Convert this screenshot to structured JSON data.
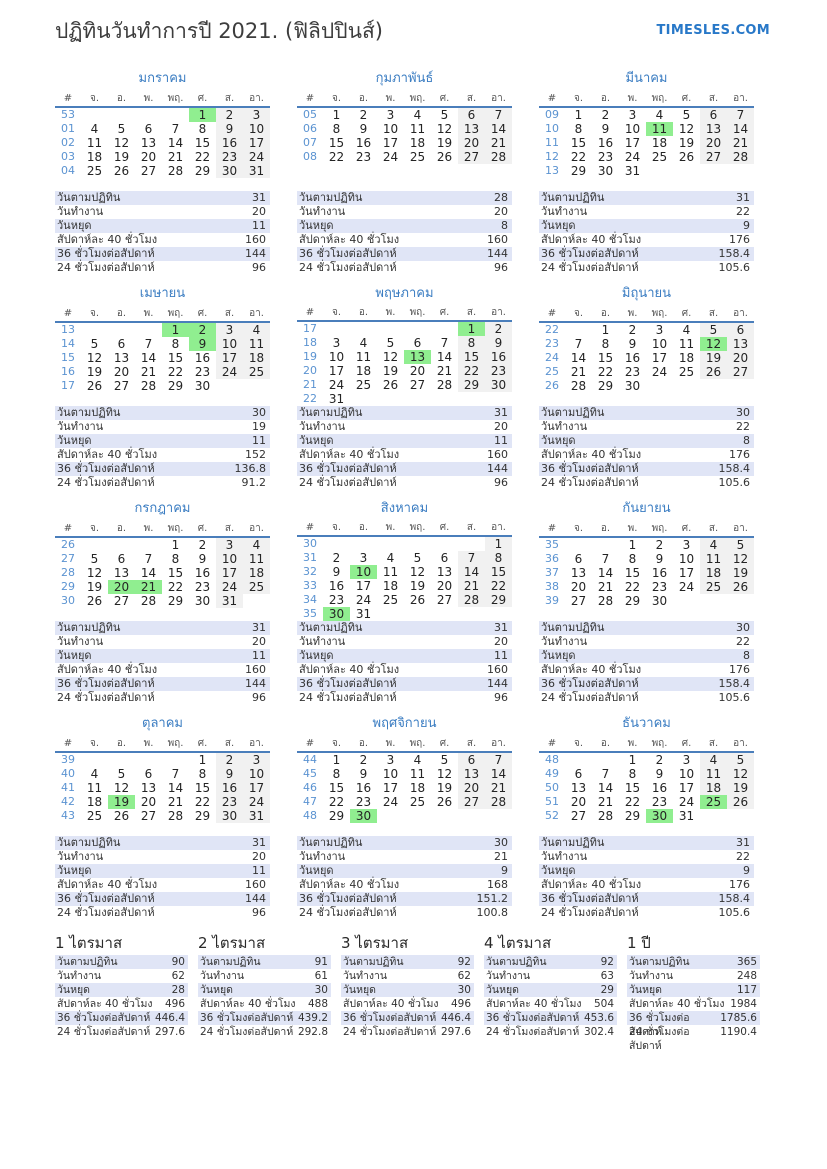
{
  "page": {
    "title": "ปฏิทินวันทำการปี 2021. (ฟิลิปปินส์)",
    "site": "TIMESLES.COM"
  },
  "colors": {
    "accent": "#2878c8",
    "month_title": "#3b7dc2",
    "week_number": "#5b93d1",
    "rule": "#4a7ebb",
    "holiday": "#90ee90",
    "weekend": "#f1f1f1",
    "row_alt": "#e0e5f6"
  },
  "day_headers": [
    "#",
    "จ.",
    "อ.",
    "พ.",
    "พฤ.",
    "ศ.",
    "ส.",
    "อา."
  ],
  "stat_labels": [
    "วันตามปฏิทิน",
    "วันทำงาน",
    "วันหยุด",
    "สัปดาห์ละ 40 ชั่วโมง",
    "36 ชั่วโมงต่อสัปดาห์",
    "24 ชั่วโมงต่อสัปดาห์"
  ],
  "months": [
    {
      "name": "มกราคม",
      "holidays": [
        1
      ],
      "stats": [
        "31",
        "20",
        "11",
        "160",
        "144",
        "96"
      ],
      "weeks": [
        {
          "num": "53",
          "days": [
            "",
            "",
            "",
            "",
            "1",
            "2",
            "3"
          ]
        },
        {
          "num": "01",
          "days": [
            "4",
            "5",
            "6",
            "7",
            "8",
            "9",
            "10"
          ]
        },
        {
          "num": "02",
          "days": [
            "11",
            "12",
            "13",
            "14",
            "15",
            "16",
            "17"
          ]
        },
        {
          "num": "03",
          "days": [
            "18",
            "19",
            "20",
            "21",
            "22",
            "23",
            "24"
          ]
        },
        {
          "num": "04",
          "days": [
            "25",
            "26",
            "27",
            "28",
            "29",
            "30",
            "31"
          ]
        }
      ]
    },
    {
      "name": "กุมภาพันธ์",
      "holidays": [],
      "stats": [
        "28",
        "20",
        "8",
        "160",
        "144",
        "96"
      ],
      "weeks": [
        {
          "num": "05",
          "days": [
            "1",
            "2",
            "3",
            "4",
            "5",
            "6",
            "7"
          ]
        },
        {
          "num": "06",
          "days": [
            "8",
            "9",
            "10",
            "11",
            "12",
            "13",
            "14"
          ]
        },
        {
          "num": "07",
          "days": [
            "15",
            "16",
            "17",
            "18",
            "19",
            "20",
            "21"
          ]
        },
        {
          "num": "08",
          "days": [
            "22",
            "23",
            "24",
            "25",
            "26",
            "27",
            "28"
          ]
        }
      ]
    },
    {
      "name": "มีนาคม",
      "holidays": [
        11
      ],
      "stats": [
        "31",
        "22",
        "9",
        "176",
        "158.4",
        "105.6"
      ],
      "weeks": [
        {
          "num": "09",
          "days": [
            "1",
            "2",
            "3",
            "4",
            "5",
            "6",
            "7"
          ]
        },
        {
          "num": "10",
          "days": [
            "8",
            "9",
            "10",
            "11",
            "12",
            "13",
            "14"
          ]
        },
        {
          "num": "11",
          "days": [
            "15",
            "16",
            "17",
            "18",
            "19",
            "20",
            "21"
          ]
        },
        {
          "num": "12",
          "days": [
            "22",
            "23",
            "24",
            "25",
            "26",
            "27",
            "28"
          ]
        },
        {
          "num": "13",
          "days": [
            "29",
            "30",
            "31",
            "",
            "",
            "",
            ""
          ]
        }
      ]
    },
    {
      "name": "เมษายน",
      "holidays": [
        1,
        2,
        9
      ],
      "stats": [
        "30",
        "19",
        "11",
        "152",
        "136.8",
        "91.2"
      ],
      "weeks": [
        {
          "num": "13",
          "days": [
            "",
            "",
            "",
            "1",
            "2",
            "3",
            "4"
          ]
        },
        {
          "num": "14",
          "days": [
            "5",
            "6",
            "7",
            "8",
            "9",
            "10",
            "11"
          ]
        },
        {
          "num": "15",
          "days": [
            "12",
            "13",
            "14",
            "15",
            "16",
            "17",
            "18"
          ]
        },
        {
          "num": "16",
          "days": [
            "19",
            "20",
            "21",
            "22",
            "23",
            "24",
            "25"
          ]
        },
        {
          "num": "17",
          "days": [
            "26",
            "27",
            "28",
            "29",
            "30",
            "",
            ""
          ]
        }
      ]
    },
    {
      "name": "พฤษภาคม",
      "holidays": [
        1,
        13
      ],
      "stats": [
        "31",
        "20",
        "11",
        "160",
        "144",
        "96"
      ],
      "weeks": [
        {
          "num": "17",
          "days": [
            "",
            "",
            "",
            "",
            "",
            "1",
            "2"
          ]
        },
        {
          "num": "18",
          "days": [
            "3",
            "4",
            "5",
            "6",
            "7",
            "8",
            "9"
          ]
        },
        {
          "num": "19",
          "days": [
            "10",
            "11",
            "12",
            "13",
            "14",
            "15",
            "16"
          ]
        },
        {
          "num": "20",
          "days": [
            "17",
            "18",
            "19",
            "20",
            "21",
            "22",
            "23"
          ]
        },
        {
          "num": "21",
          "days": [
            "24",
            "25",
            "26",
            "27",
            "28",
            "29",
            "30"
          ]
        },
        {
          "num": "22",
          "days": [
            "31",
            "",
            "",
            "",
            "",
            "",
            ""
          ]
        }
      ]
    },
    {
      "name": "มิถุนายน",
      "holidays": [
        12
      ],
      "stats": [
        "30",
        "22",
        "8",
        "176",
        "158.4",
        "105.6"
      ],
      "weeks": [
        {
          "num": "22",
          "days": [
            "",
            "1",
            "2",
            "3",
            "4",
            "5",
            "6"
          ]
        },
        {
          "num": "23",
          "days": [
            "7",
            "8",
            "9",
            "10",
            "11",
            "12",
            "13"
          ]
        },
        {
          "num": "24",
          "days": [
            "14",
            "15",
            "16",
            "17",
            "18",
            "19",
            "20"
          ]
        },
        {
          "num": "25",
          "days": [
            "21",
            "22",
            "23",
            "24",
            "25",
            "26",
            "27"
          ]
        },
        {
          "num": "26",
          "days": [
            "28",
            "29",
            "30",
            "",
            "",
            "",
            ""
          ]
        }
      ]
    },
    {
      "name": "กรกฎาคม",
      "holidays": [
        20,
        21
      ],
      "stats": [
        "31",
        "20",
        "11",
        "160",
        "144",
        "96"
      ],
      "weeks": [
        {
          "num": "26",
          "days": [
            "",
            "",
            "",
            "1",
            "2",
            "3",
            "4"
          ]
        },
        {
          "num": "27",
          "days": [
            "5",
            "6",
            "7",
            "8",
            "9",
            "10",
            "11"
          ]
        },
        {
          "num": "28",
          "days": [
            "12",
            "13",
            "14",
            "15",
            "16",
            "17",
            "18"
          ]
        },
        {
          "num": "29",
          "days": [
            "19",
            "20",
            "21",
            "22",
            "23",
            "24",
            "25"
          ]
        },
        {
          "num": "30",
          "days": [
            "26",
            "27",
            "28",
            "29",
            "30",
            "31",
            ""
          ]
        }
      ]
    },
    {
      "name": "สิงหาคม",
      "holidays": [
        10,
        30
      ],
      "stats": [
        "31",
        "20",
        "11",
        "160",
        "144",
        "96"
      ],
      "weeks": [
        {
          "num": "30",
          "days": [
            "",
            "",
            "",
            "",
            "",
            "",
            "1"
          ]
        },
        {
          "num": "31",
          "days": [
            "2",
            "3",
            "4",
            "5",
            "6",
            "7",
            "8"
          ]
        },
        {
          "num": "32",
          "days": [
            "9",
            "10",
            "11",
            "12",
            "13",
            "14",
            "15"
          ]
        },
        {
          "num": "33",
          "days": [
            "16",
            "17",
            "18",
            "19",
            "20",
            "21",
            "22"
          ]
        },
        {
          "num": "34",
          "days": [
            "23",
            "24",
            "25",
            "26",
            "27",
            "28",
            "29"
          ]
        },
        {
          "num": "35",
          "days": [
            "30",
            "31",
            "",
            "",
            "",
            "",
            ""
          ]
        }
      ]
    },
    {
      "name": "กันยายน",
      "holidays": [],
      "stats": [
        "30",
        "22",
        "8",
        "176",
        "158.4",
        "105.6"
      ],
      "weeks": [
        {
          "num": "35",
          "days": [
            "",
            "",
            "1",
            "2",
            "3",
            "4",
            "5"
          ]
        },
        {
          "num": "36",
          "days": [
            "6",
            "7",
            "8",
            "9",
            "10",
            "11",
            "12"
          ]
        },
        {
          "num": "37",
          "days": [
            "13",
            "14",
            "15",
            "16",
            "17",
            "18",
            "19"
          ]
        },
        {
          "num": "38",
          "days": [
            "20",
            "21",
            "22",
            "23",
            "24",
            "25",
            "26"
          ]
        },
        {
          "num": "39",
          "days": [
            "27",
            "28",
            "29",
            "30",
            "",
            "",
            ""
          ]
        }
      ]
    },
    {
      "name": "ตุลาคม",
      "holidays": [
        19
      ],
      "stats": [
        "31",
        "20",
        "11",
        "160",
        "144",
        "96"
      ],
      "weeks": [
        {
          "num": "39",
          "days": [
            "",
            "",
            "",
            "",
            "1",
            "2",
            "3"
          ]
        },
        {
          "num": "40",
          "days": [
            "4",
            "5",
            "6",
            "7",
            "8",
            "9",
            "10"
          ]
        },
        {
          "num": "41",
          "days": [
            "11",
            "12",
            "13",
            "14",
            "15",
            "16",
            "17"
          ]
        },
        {
          "num": "42",
          "days": [
            "18",
            "19",
            "20",
            "21",
            "22",
            "23",
            "24"
          ]
        },
        {
          "num": "43",
          "days": [
            "25",
            "26",
            "27",
            "28",
            "29",
            "30",
            "31"
          ]
        }
      ]
    },
    {
      "name": "พฤศจิกายน",
      "holidays": [
        30
      ],
      "stats": [
        "30",
        "21",
        "9",
        "168",
        "151.2",
        "100.8"
      ],
      "weeks": [
        {
          "num": "44",
          "days": [
            "1",
            "2",
            "3",
            "4",
            "5",
            "6",
            "7"
          ]
        },
        {
          "num": "45",
          "days": [
            "8",
            "9",
            "10",
            "11",
            "12",
            "13",
            "14"
          ]
        },
        {
          "num": "46",
          "days": [
            "15",
            "16",
            "17",
            "18",
            "19",
            "20",
            "21"
          ]
        },
        {
          "num": "47",
          "days": [
            "22",
            "23",
            "24",
            "25",
            "26",
            "27",
            "28"
          ]
        },
        {
          "num": "48",
          "days": [
            "29",
            "30",
            "",
            "",
            "",
            "",
            ""
          ]
        }
      ]
    },
    {
      "name": "ธันวาคม",
      "holidays": [
        25,
        30
      ],
      "stats": [
        "31",
        "22",
        "9",
        "176",
        "158.4",
        "105.6"
      ],
      "weeks": [
        {
          "num": "48",
          "days": [
            "",
            "",
            "1",
            "2",
            "3",
            "4",
            "5"
          ]
        },
        {
          "num": "49",
          "days": [
            "6",
            "7",
            "8",
            "9",
            "10",
            "11",
            "12"
          ]
        },
        {
          "num": "50",
          "days": [
            "13",
            "14",
            "15",
            "16",
            "17",
            "18",
            "19"
          ]
        },
        {
          "num": "51",
          "days": [
            "20",
            "21",
            "22",
            "23",
            "24",
            "25",
            "26"
          ]
        },
        {
          "num": "52",
          "days": [
            "27",
            "28",
            "29",
            "30",
            "31",
            "",
            ""
          ]
        }
      ]
    }
  ],
  "summaries": [
    {
      "title": "1 ไตรมาส",
      "stats": [
        "90",
        "62",
        "28",
        "496",
        "446.4",
        "297.6"
      ]
    },
    {
      "title": "2 ไตรมาส",
      "stats": [
        "91",
        "61",
        "30",
        "488",
        "439.2",
        "292.8"
      ]
    },
    {
      "title": "3 ไตรมาส",
      "stats": [
        "92",
        "62",
        "30",
        "496",
        "446.4",
        "297.6"
      ]
    },
    {
      "title": "4 ไตรมาส",
      "stats": [
        "92",
        "63",
        "29",
        "504",
        "453.6",
        "302.4"
      ]
    },
    {
      "title": "1 ปี",
      "stats": [
        "365",
        "248",
        "117",
        "1984",
        "1785.6",
        "1190.4"
      ]
    }
  ]
}
